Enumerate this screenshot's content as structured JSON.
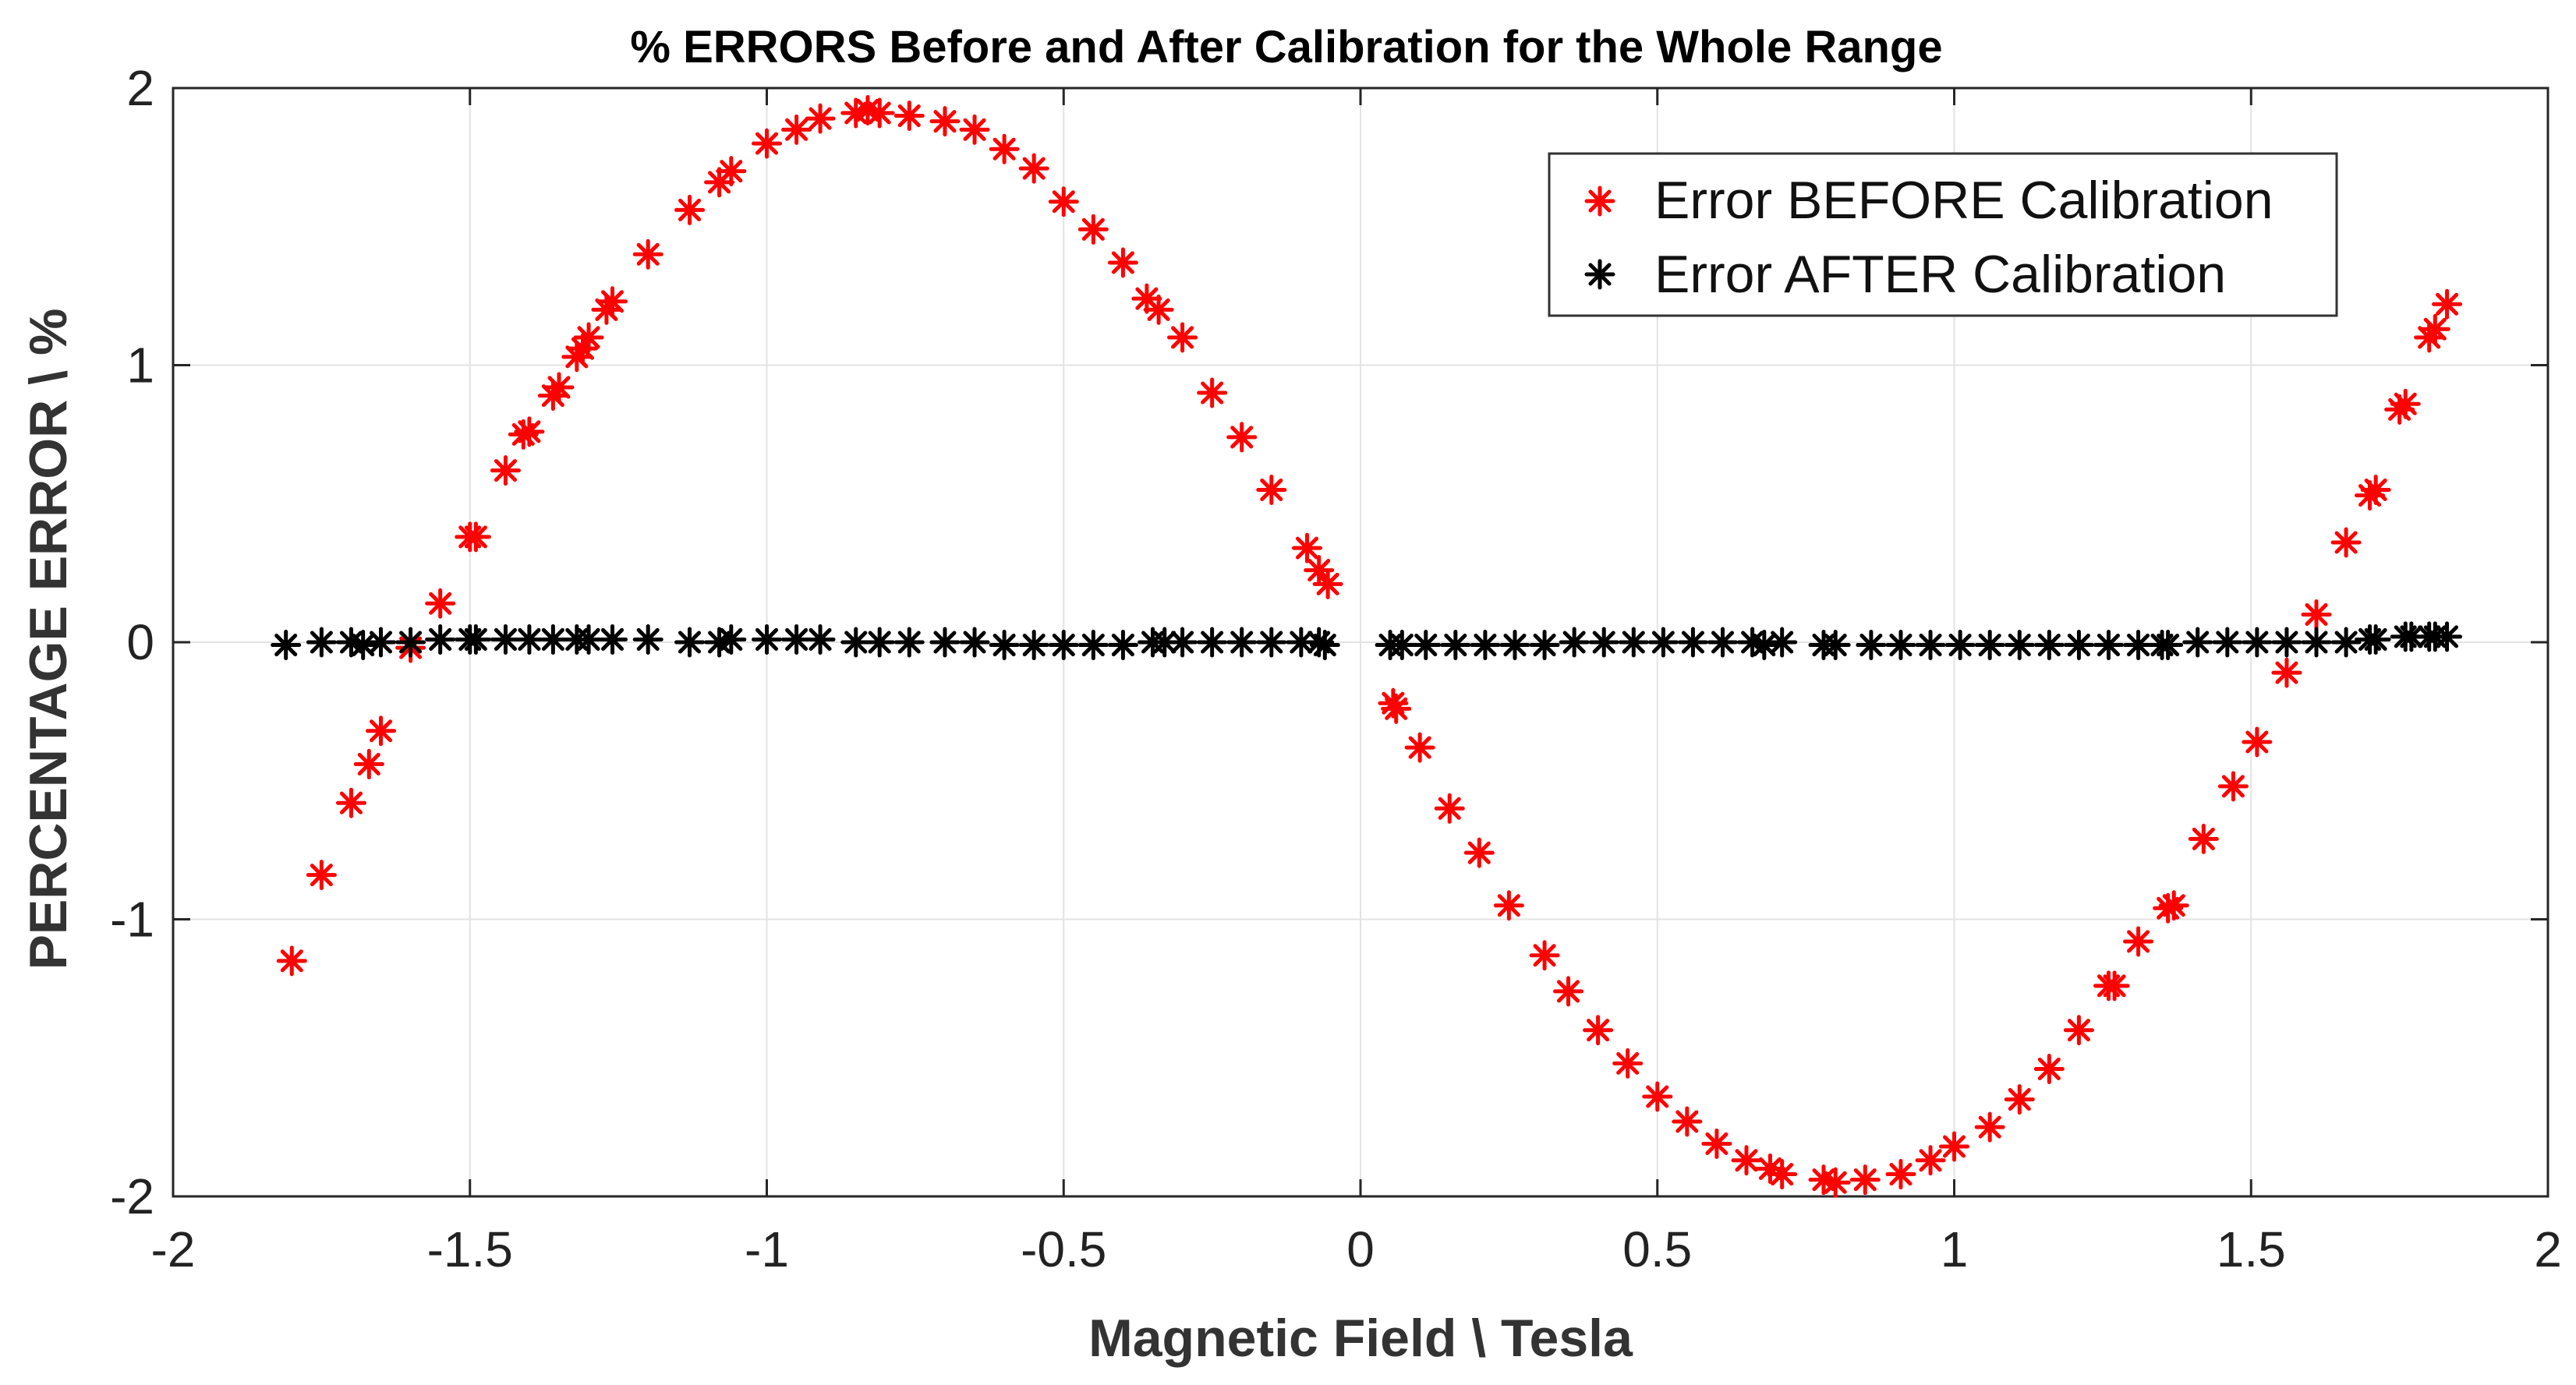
{
  "chart_data": {
    "type": "scatter",
    "title": "% ERRORS Before and After Calibration for the Whole Range",
    "xlabel": "Magnetic Field \\ Tesla",
    "ylabel": "PERCENTAGE ERROR \\ %",
    "xlim": [
      -2,
      2
    ],
    "ylim": [
      -2,
      2
    ],
    "xticks": [
      -2,
      -1.5,
      -1,
      -0.5,
      0,
      0.5,
      1,
      1.5,
      2
    ],
    "xtick_labels": [
      "-2",
      "-1.5",
      "-1",
      "-0.5",
      "0",
      "0.5",
      "1",
      "1.5",
      "2"
    ],
    "yticks": [
      -2,
      -1,
      0,
      1,
      2
    ],
    "ytick_labels": [
      "-2",
      "-1",
      "0",
      "1",
      "2"
    ],
    "grid": true,
    "legend_position": "top-right",
    "series": [
      {
        "name": "Error BEFORE Calibration",
        "color": "#ff0000",
        "marker": "asterisk",
        "points": [
          [
            -1.8,
            -1.15
          ],
          [
            -1.75,
            -0.84
          ],
          [
            -1.7,
            -0.58
          ],
          [
            -1.67,
            -0.44
          ],
          [
            -1.65,
            -0.32
          ],
          [
            -1.6,
            -0.02
          ],
          [
            -1.55,
            0.14
          ],
          [
            -1.5,
            0.38
          ],
          [
            -1.49,
            0.38
          ],
          [
            -1.44,
            0.62
          ],
          [
            -1.41,
            0.75
          ],
          [
            -1.4,
            0.76
          ],
          [
            -1.36,
            0.89
          ],
          [
            -1.35,
            0.92
          ],
          [
            -1.32,
            1.03
          ],
          [
            -1.31,
            1.06
          ],
          [
            -1.3,
            1.1
          ],
          [
            -1.27,
            1.2
          ],
          [
            -1.26,
            1.23
          ],
          [
            -1.2,
            1.4
          ],
          [
            -1.13,
            1.56
          ],
          [
            -1.08,
            1.66
          ],
          [
            -1.06,
            1.7
          ],
          [
            -1.0,
            1.8
          ],
          [
            -0.95,
            1.85
          ],
          [
            -0.91,
            1.89
          ],
          [
            -0.85,
            1.91
          ],
          [
            -0.83,
            1.92
          ],
          [
            -0.81,
            1.91
          ],
          [
            -0.76,
            1.9
          ],
          [
            -0.7,
            1.88
          ],
          [
            -0.65,
            1.85
          ],
          [
            -0.6,
            1.78
          ],
          [
            -0.55,
            1.71
          ],
          [
            -0.5,
            1.59
          ],
          [
            -0.45,
            1.49
          ],
          [
            -0.4,
            1.37
          ],
          [
            -0.36,
            1.24
          ],
          [
            -0.34,
            1.2
          ],
          [
            -0.3,
            1.1
          ],
          [
            -0.25,
            0.9
          ],
          [
            -0.2,
            0.74
          ],
          [
            -0.15,
            0.55
          ],
          [
            -0.09,
            0.34
          ],
          [
            -0.07,
            0.26
          ],
          [
            -0.055,
            0.21
          ],
          [
            0.055,
            -0.22
          ],
          [
            0.06,
            -0.24
          ],
          [
            0.1,
            -0.38
          ],
          [
            0.15,
            -0.6
          ],
          [
            0.2,
            -0.76
          ],
          [
            0.25,
            -0.95
          ],
          [
            0.31,
            -1.13
          ],
          [
            0.35,
            -1.26
          ],
          [
            0.4,
            -1.4
          ],
          [
            0.45,
            -1.52
          ],
          [
            0.5,
            -1.64
          ],
          [
            0.55,
            -1.73
          ],
          [
            0.6,
            -1.81
          ],
          [
            0.65,
            -1.87
          ],
          [
            0.69,
            -1.9
          ],
          [
            0.71,
            -1.92
          ],
          [
            0.78,
            -1.94
          ],
          [
            0.8,
            -1.95
          ],
          [
            0.85,
            -1.94
          ],
          [
            0.91,
            -1.92
          ],
          [
            0.96,
            -1.87
          ],
          [
            1.0,
            -1.82
          ],
          [
            1.06,
            -1.75
          ],
          [
            1.11,
            -1.65
          ],
          [
            1.16,
            -1.54
          ],
          [
            1.21,
            -1.4
          ],
          [
            1.26,
            -1.24
          ],
          [
            1.27,
            -1.24
          ],
          [
            1.31,
            -1.08
          ],
          [
            1.36,
            -0.96
          ],
          [
            1.37,
            -0.95
          ],
          [
            1.42,
            -0.71
          ],
          [
            1.47,
            -0.52
          ],
          [
            1.51,
            -0.36
          ],
          [
            1.56,
            -0.11
          ],
          [
            1.61,
            0.1
          ],
          [
            1.66,
            0.36
          ],
          [
            1.7,
            0.53
          ],
          [
            1.71,
            0.55
          ],
          [
            1.75,
            0.84
          ],
          [
            1.76,
            0.86
          ],
          [
            1.8,
            1.1
          ],
          [
            1.81,
            1.13
          ],
          [
            1.83,
            1.22
          ]
        ]
      },
      {
        "name": "Error AFTER Calibration",
        "color": "#000000",
        "marker": "asterisk",
        "points": [
          [
            -1.81,
            -0.01
          ],
          [
            -1.75,
            0.0
          ],
          [
            -1.7,
            0.0
          ],
          [
            -1.68,
            -0.01
          ],
          [
            -1.65,
            0.0
          ],
          [
            -1.6,
            0.0
          ],
          [
            -1.55,
            0.01
          ],
          [
            -1.5,
            0.01
          ],
          [
            -1.49,
            0.01
          ],
          [
            -1.44,
            0.01
          ],
          [
            -1.4,
            0.01
          ],
          [
            -1.36,
            0.01
          ],
          [
            -1.32,
            0.01
          ],
          [
            -1.3,
            0.01
          ],
          [
            -1.26,
            0.01
          ],
          [
            -1.2,
            0.01
          ],
          [
            -1.13,
            0.0
          ],
          [
            -1.08,
            0.0
          ],
          [
            -1.06,
            0.01
          ],
          [
            -1.0,
            0.01
          ],
          [
            -0.95,
            0.01
          ],
          [
            -0.91,
            0.01
          ],
          [
            -0.85,
            0.0
          ],
          [
            -0.81,
            0.0
          ],
          [
            -0.76,
            0.0
          ],
          [
            -0.7,
            0.0
          ],
          [
            -0.65,
            0.0
          ],
          [
            -0.6,
            -0.01
          ],
          [
            -0.55,
            -0.01
          ],
          [
            -0.5,
            -0.01
          ],
          [
            -0.45,
            -0.01
          ],
          [
            -0.4,
            -0.01
          ],
          [
            -0.35,
            0.0
          ],
          [
            -0.33,
            0.0
          ],
          [
            -0.3,
            0.0
          ],
          [
            -0.25,
            0.0
          ],
          [
            -0.2,
            0.0
          ],
          [
            -0.15,
            0.0
          ],
          [
            -0.1,
            0.0
          ],
          [
            -0.07,
            0.0
          ],
          [
            -0.06,
            -0.01
          ],
          [
            0.05,
            -0.01
          ],
          [
            0.07,
            -0.01
          ],
          [
            0.11,
            -0.01
          ],
          [
            0.16,
            -0.01
          ],
          [
            0.21,
            -0.01
          ],
          [
            0.26,
            -0.01
          ],
          [
            0.31,
            -0.01
          ],
          [
            0.36,
            0.0
          ],
          [
            0.41,
            0.0
          ],
          [
            0.46,
            0.0
          ],
          [
            0.51,
            0.0
          ],
          [
            0.56,
            0.0
          ],
          [
            0.61,
            0.0
          ],
          [
            0.66,
            0.0
          ],
          [
            0.68,
            -0.01
          ],
          [
            0.71,
            0.0
          ],
          [
            0.78,
            -0.01
          ],
          [
            0.8,
            -0.01
          ],
          [
            0.86,
            -0.01
          ],
          [
            0.91,
            -0.01
          ],
          [
            0.96,
            -0.01
          ],
          [
            1.01,
            -0.01
          ],
          [
            1.06,
            -0.01
          ],
          [
            1.11,
            -0.01
          ],
          [
            1.16,
            -0.01
          ],
          [
            1.21,
            -0.01
          ],
          [
            1.26,
            -0.01
          ],
          [
            1.31,
            -0.01
          ],
          [
            1.35,
            -0.01
          ],
          [
            1.36,
            -0.01
          ],
          [
            1.41,
            0.0
          ],
          [
            1.46,
            0.0
          ],
          [
            1.51,
            0.0
          ],
          [
            1.56,
            0.0
          ],
          [
            1.61,
            0.0
          ],
          [
            1.66,
            0.0
          ],
          [
            1.7,
            0.01
          ],
          [
            1.71,
            0.01
          ],
          [
            1.76,
            0.02
          ],
          [
            1.77,
            0.02
          ],
          [
            1.8,
            0.02
          ],
          [
            1.81,
            0.02
          ],
          [
            1.83,
            0.02
          ]
        ]
      }
    ]
  }
}
